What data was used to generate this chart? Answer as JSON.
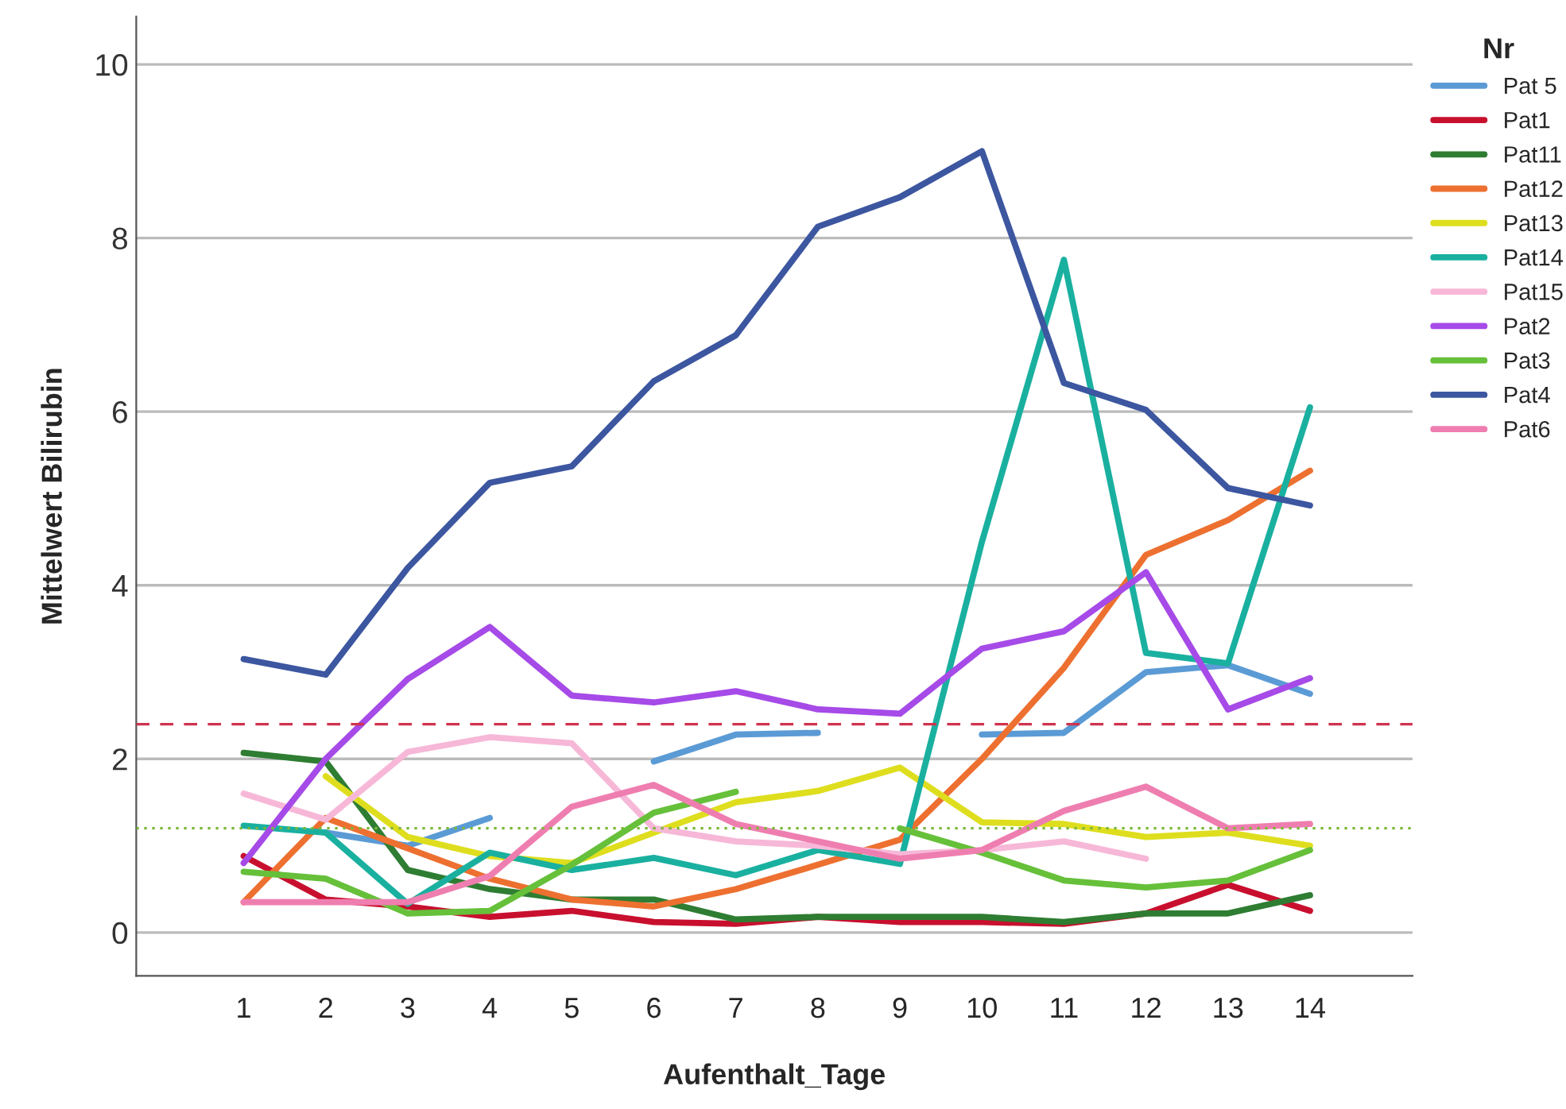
{
  "chart_data": {
    "type": "line",
    "xlabel": "Aufenthalt_Tage",
    "ylabel": "Mittelwert Bilirubin",
    "legend_title": "Nr",
    "legend": "right",
    "categories": [
      "1",
      "2",
      "3",
      "4",
      "5",
      "6",
      "7",
      "8",
      "9",
      "10",
      "11",
      "12",
      "13",
      "14"
    ],
    "ylim": [
      -0.5,
      10.55
    ],
    "yticks": [
      0,
      2,
      4,
      6,
      8,
      10
    ],
    "grid": "y",
    "marker": "none",
    "line_style": "solid",
    "series": [
      {
        "name": "Pat 5",
        "color": "#5b9bd5",
        "values": [
          null,
          1.15,
          1.0,
          1.32,
          null,
          1.97,
          2.28,
          2.3,
          null,
          2.28,
          2.3,
          3.0,
          3.08,
          2.75
        ]
      },
      {
        "name": "Pat1",
        "color": "#c8102e",
        "values": [
          0.88,
          0.38,
          0.3,
          0.18,
          0.25,
          0.12,
          0.1,
          0.18,
          0.12,
          0.12,
          0.1,
          0.22,
          0.55,
          0.25
        ]
      },
      {
        "name": "Pat11",
        "color": "#2e7d32",
        "values": [
          2.07,
          1.97,
          0.72,
          0.5,
          0.38,
          0.38,
          0.15,
          0.18,
          0.18,
          0.18,
          0.12,
          0.22,
          0.22,
          0.43
        ]
      },
      {
        "name": "Pat12",
        "color": "#ed7030",
        "values": [
          0.35,
          1.32,
          0.97,
          0.62,
          0.38,
          0.3,
          0.5,
          0.78,
          1.07,
          2.0,
          3.05,
          4.35,
          4.75,
          5.32
        ]
      },
      {
        "name": "Pat13",
        "color": "#dede1e",
        "values": [
          null,
          1.8,
          1.1,
          0.88,
          0.8,
          1.15,
          1.5,
          1.63,
          1.9,
          1.27,
          1.25,
          1.1,
          1.15,
          1.0
        ]
      },
      {
        "name": "Pat14",
        "color": "#1ab0a0",
        "values": [
          1.23,
          1.15,
          0.33,
          0.92,
          0.72,
          0.86,
          0.66,
          0.95,
          0.79,
          4.5,
          7.75,
          3.22,
          3.1,
          6.05
        ]
      },
      {
        "name": "Pat15",
        "color": "#f7b8d8",
        "values": [
          1.6,
          1.3,
          2.08,
          2.25,
          2.18,
          1.2,
          1.05,
          1.0,
          0.9,
          0.95,
          1.05,
          0.85,
          null,
          null
        ]
      },
      {
        "name": "Pat2",
        "color": "#a64ae8",
        "values": [
          0.8,
          2.0,
          2.92,
          3.52,
          2.73,
          2.65,
          2.78,
          2.57,
          2.52,
          3.27,
          3.47,
          4.15,
          2.57,
          2.93
        ]
      },
      {
        "name": "Pat3",
        "color": "#66c03a",
        "values": [
          0.7,
          0.62,
          0.22,
          0.25,
          0.78,
          1.38,
          1.62,
          null,
          1.2,
          0.92,
          0.6,
          0.52,
          0.6,
          0.95
        ]
      },
      {
        "name": "Pat4",
        "color": "#3c56a0",
        "values": [
          3.15,
          2.97,
          4.2,
          5.18,
          5.37,
          6.35,
          6.88,
          8.13,
          8.47,
          9.0,
          6.33,
          6.02,
          5.12,
          4.92
        ]
      },
      {
        "name": "Pat6",
        "color": "#ef7eb0",
        "values": [
          0.35,
          0.35,
          0.35,
          0.65,
          1.45,
          1.7,
          1.25,
          1.05,
          0.85,
          0.95,
          1.4,
          1.68,
          1.2,
          1.25
        ]
      }
    ],
    "ref_lines": [
      {
        "axis": "y",
        "value": 2.4,
        "color": "#d0334e",
        "line_style": "dashed"
      },
      {
        "axis": "y",
        "value": 1.2,
        "color": "#7ab83a",
        "line_style": "dotted"
      }
    ]
  }
}
